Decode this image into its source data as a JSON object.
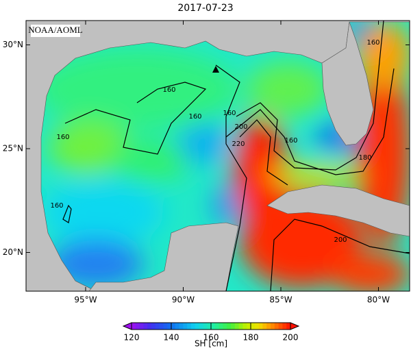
{
  "title": "2017-07-23",
  "credit": "NOAA/AOML",
  "map": {
    "lon_ticks": [
      {
        "value": -95,
        "label": "95°W"
      },
      {
        "value": -90,
        "label": "90°W"
      },
      {
        "value": -85,
        "label": "85°W"
      },
      {
        "value": -80,
        "label": "80°W"
      }
    ],
    "lat_ticks": [
      {
        "value": 30,
        "label": "30°N"
      },
      {
        "value": 25,
        "label": "25°N"
      },
      {
        "value": 20,
        "label": "20°N"
      }
    ],
    "contour_labels": [
      160,
      160,
      160,
      160,
      160,
      200,
      220,
      160,
      180,
      160,
      200
    ]
  },
  "colorbar": {
    "label": "SH [cm]",
    "range": [
      120,
      200
    ],
    "ticks": [
      120,
      140,
      160,
      180,
      200
    ]
  }
}
